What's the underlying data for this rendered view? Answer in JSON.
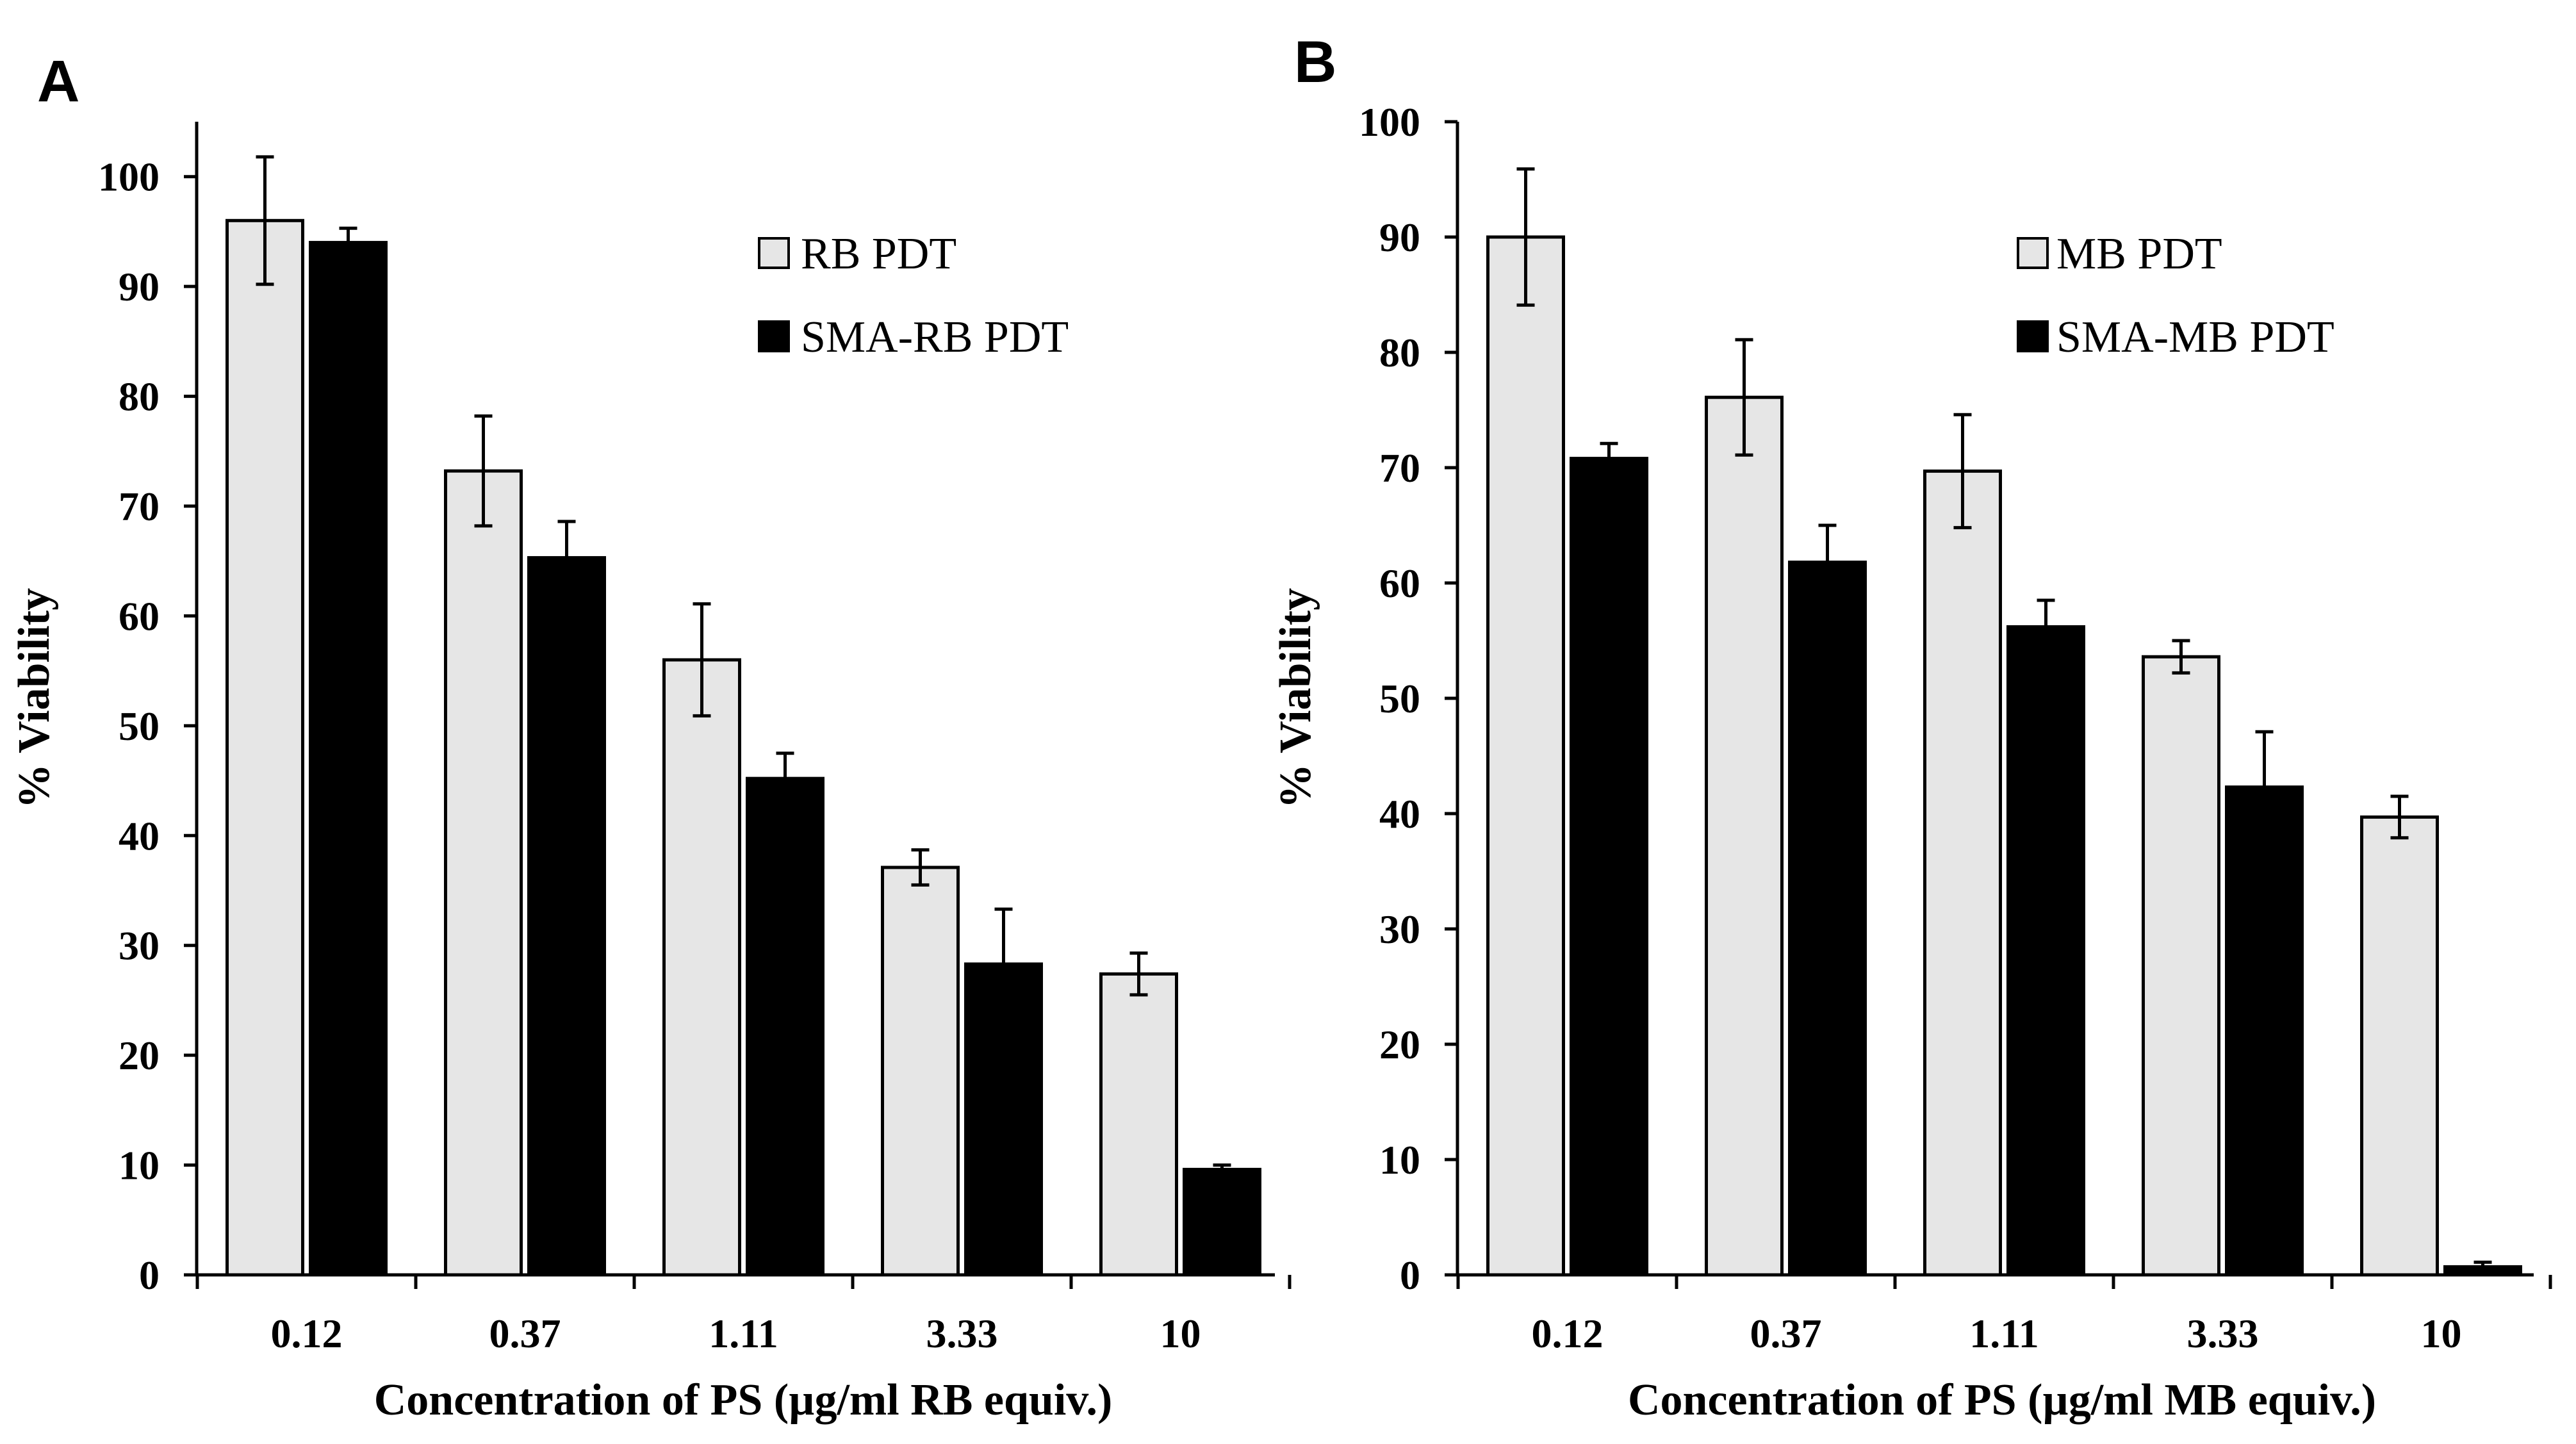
{
  "chart_data": [
    {
      "type": "bar",
      "panel_label": "A",
      "categories": [
        "0.12",
        "0.37",
        "1.11",
        "3.33",
        "10"
      ],
      "xlabel": "Concentration of PS (µg/ml RB equiv.)",
      "ylabel": "% Viability",
      "ylim": [
        0,
        105
      ],
      "yticks": [
        "0",
        "10",
        "20",
        "30",
        "40",
        "50",
        "60",
        "70",
        "80",
        "90",
        "100"
      ],
      "legend_position": "top-right",
      "series": [
        {
          "name": "RB PDT",
          "color": "#e6e6e6",
          "values": [
            96,
            73.2,
            56,
            37.1,
            27.4
          ],
          "errors": [
            5.8,
            5,
            5.1,
            1.6,
            1.9
          ]
        },
        {
          "name": "SMA-RB PDT",
          "color": "#000000",
          "values": [
            94,
            65.3,
            45.2,
            28.3,
            9.6
          ],
          "errors": [
            1.3,
            3.3,
            2.3,
            5,
            0.4
          ]
        }
      ]
    },
    {
      "type": "bar",
      "panel_label": "B",
      "categories": [
        "0.12",
        "0.37",
        "1.11",
        "3.33",
        "10"
      ],
      "xlabel": "Concentration of PS (µg/ml MB equiv.)",
      "ylabel": "% Viability",
      "ylim": [
        0,
        100
      ],
      "yticks": [
        "0",
        "10",
        "20",
        "30",
        "40",
        "50",
        "60",
        "70",
        "80",
        "90",
        "100"
      ],
      "legend_position": "top-right",
      "series": [
        {
          "name": "MB PDT",
          "color": "#e6e6e6",
          "values": [
            90,
            76.1,
            69.7,
            53.6,
            39.7
          ],
          "errors": [
            5.9,
            5,
            4.9,
            1.4,
            1.8
          ]
        },
        {
          "name": "SMA-MB PDT",
          "color": "#000000",
          "values": [
            70.8,
            61.8,
            56.2,
            42.3,
            0.7
          ],
          "errors": [
            1.3,
            3.2,
            2.3,
            4.8,
            0.4
          ]
        }
      ]
    }
  ]
}
